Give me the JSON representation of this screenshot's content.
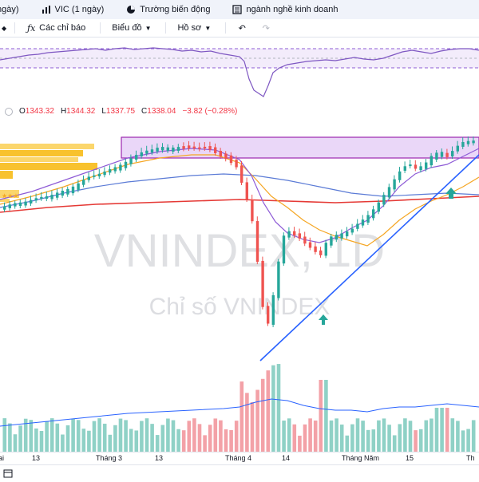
{
  "tabs": [
    {
      "label": "ngày)",
      "icon": "bar-chart-icon"
    },
    {
      "label": "VIC (1 ngày)",
      "icon": "bar-chart-icon"
    },
    {
      "label": "Trường biến động",
      "icon": "pie-chart-icon"
    },
    {
      "label": "ngành nghề kinh doanh",
      "icon": "list-icon"
    }
  ],
  "toolbar": {
    "indicators_label": "Các chỉ báo",
    "chart_type_label": "Biểu đồ",
    "profile_label": "Hồ sơ"
  },
  "ohlc": {
    "open_label": "O",
    "open": "1343.32",
    "high_label": "H",
    "high": "1344.32",
    "low_label": "L",
    "low": "1337.75",
    "close_label": "C",
    "close": "1338.04",
    "change": "−3.82 (−0.28%)"
  },
  "watermark": {
    "symbol": "VNINDEX, 1D",
    "name": "Chỉ số VNINDEX"
  },
  "xaxis": {
    "labels": [
      "ai",
      "13",
      "Tháng 3",
      "13",
      "Tháng 4",
      "14",
      "Tháng Năm",
      "15",
      "Th"
    ]
  },
  "colors": {
    "up": "#26a69a",
    "down": "#ef5350",
    "zone": "#9c27b0",
    "trend": "#2962ff",
    "ma_red": "#e53935",
    "ma_blue": "#5b7bd6",
    "ma_orange": "#f5a623",
    "ma_purple": "#8e5bd6"
  }
}
